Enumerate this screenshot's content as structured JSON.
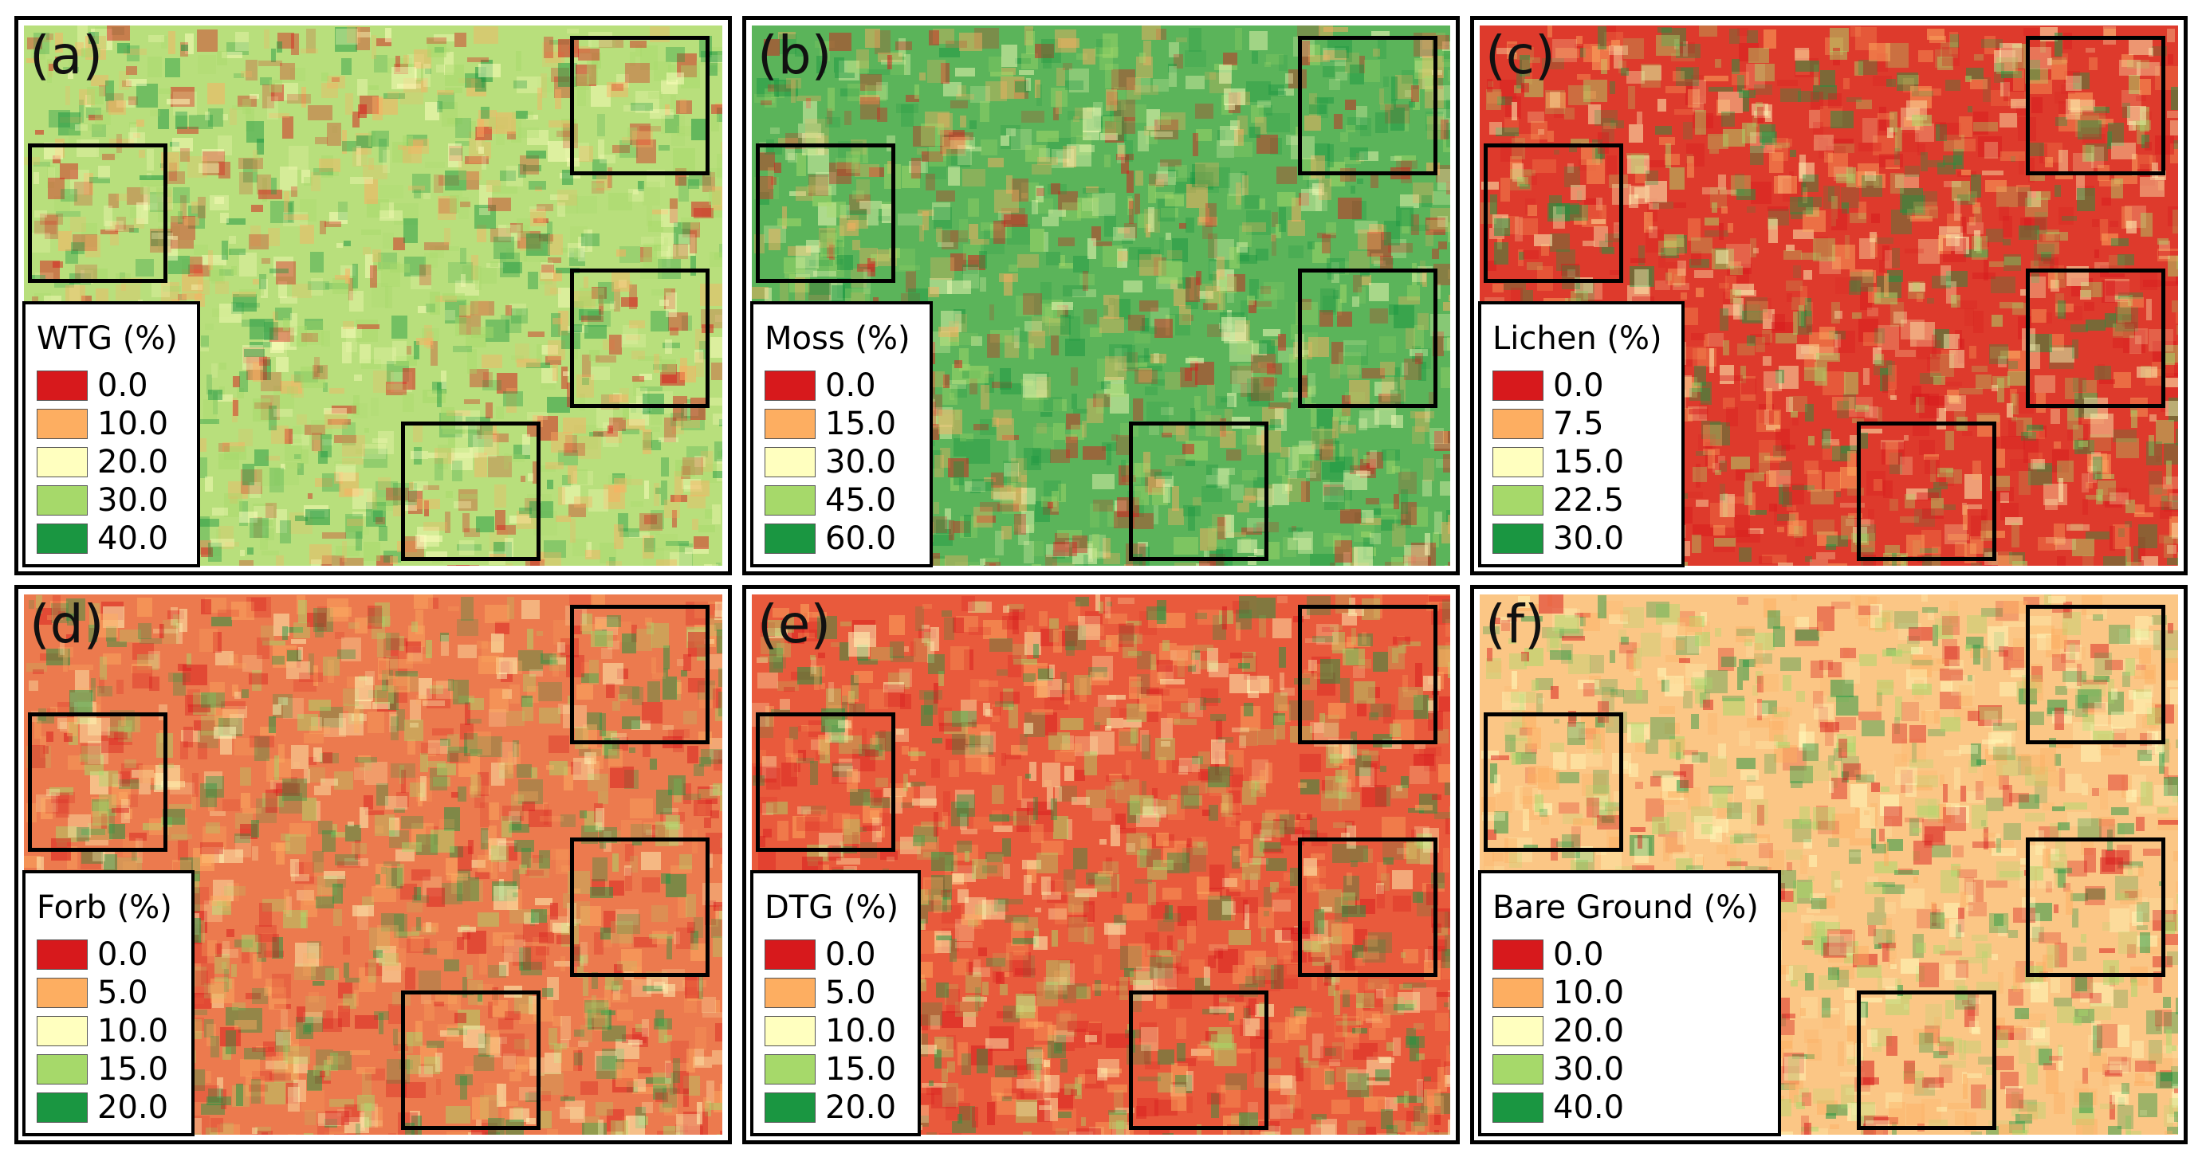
{
  "colors": {
    "ramp": [
      "#d7191c",
      "#fdae61",
      "#ffffbf",
      "#a6d96a",
      "#1a9641"
    ],
    "frame": "#000000"
  },
  "panels": [
    {
      "label": "(a)",
      "legend_title": "WTG (%)",
      "legend_values": [
        "0.0",
        "10.0",
        "20.0",
        "30.0",
        "40.0"
      ],
      "base_color": "#b8df7c",
      "seed": 11
    },
    {
      "label": "(b)",
      "legend_title": "Moss (%)",
      "legend_values": [
        "0.0",
        "15.0",
        "30.0",
        "45.0",
        "60.0"
      ],
      "base_color": "#5bb45a",
      "seed": 23
    },
    {
      "label": "(c)",
      "legend_title": "Lichen (%)",
      "legend_values": [
        "0.0",
        "7.5",
        "15.0",
        "22.5",
        "30.0"
      ],
      "base_color": "#de3a2c",
      "seed": 37
    },
    {
      "label": "(d)",
      "legend_title": "Forb (%)",
      "legend_values": [
        "0.0",
        "5.0",
        "10.0",
        "15.0",
        "20.0"
      ],
      "base_color": "#ec7a4e",
      "seed": 41
    },
    {
      "label": "(e)",
      "legend_title": "DTG (%)",
      "legend_values": [
        "0.0",
        "5.0",
        "10.0",
        "15.0",
        "20.0"
      ],
      "base_color": "#e95a3c",
      "seed": 53
    },
    {
      "label": "(f)",
      "legend_title": "Bare Ground (%)",
      "legend_values": [
        "0.0",
        "10.0",
        "20.0",
        "30.0",
        "40.0"
      ],
      "base_color": "#fbc685",
      "seed": 67
    }
  ]
}
